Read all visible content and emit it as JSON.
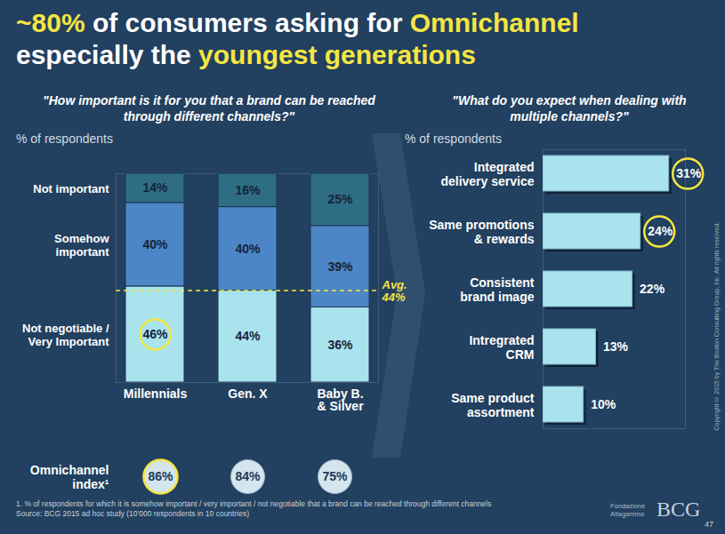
{
  "title_lines": [
    [
      {
        "text": "~80%",
        "color": "#f5e642"
      },
      {
        "text": " of consumers asking for ",
        "color": "#ffffff"
      },
      {
        "text": "Omnichannel",
        "color": "#f5e642"
      }
    ],
    [
      {
        "text": "especially the ",
        "color": "#ffffff"
      },
      {
        "text": "youngest generations",
        "color": "#f5e642"
      }
    ]
  ],
  "chart_data": [
    {
      "type": "bar",
      "stacked": true,
      "subtitle": "\"How important is it for you that a brand can be reached through different channels?\"",
      "ylabel": "% of respondents",
      "categories": [
        "Millennials",
        "Gen. X",
        "Baby B. & Silver"
      ],
      "series": [
        {
          "name": "Not negotiable / Very Important",
          "color": "#a9e3ee",
          "values": [
            46,
            44,
            36
          ],
          "value_labels": [
            "46%",
            "44%",
            "36%"
          ],
          "highlight": [
            0
          ]
        },
        {
          "name": "Somehow important",
          "color": "#4d86c6",
          "values": [
            40,
            40,
            39
          ],
          "value_labels": [
            "40%",
            "40%",
            "39%"
          ]
        },
        {
          "name": "Not important",
          "color": "#2f6d85",
          "values": [
            14,
            16,
            25
          ],
          "value_labels": [
            "14%",
            "16%",
            "25%"
          ]
        }
      ],
      "ylim": [
        0,
        100
      ],
      "yticks": [],
      "tick_labels": "x",
      "data_labels": true,
      "legend": "left",
      "annotations": [
        {
          "value": 44,
          "label": "Avg. 44%",
          "color": "#f5e642",
          "line_style": "dashed"
        }
      ],
      "omnichannel_index": {
        "label": "Omnichannel index¹",
        "values": [
          86,
          84,
          75
        ],
        "value_labels": [
          "86%",
          "84%",
          "75%"
        ],
        "highlight": [
          0
        ],
        "color": "#d4e5ee"
      }
    },
    {
      "type": "bar",
      "orientation": "horizontal",
      "subtitle": "\"What do you expect when dealing with multiple channels?\"",
      "xlabel": "% of respondents",
      "categories": [
        "Integrated delivery service",
        "Same promotions & rewards",
        "Consistent brand image",
        "Intregrated CRM",
        "Same product assortment"
      ],
      "values": [
        31,
        24,
        22,
        13,
        10
      ],
      "value_labels": [
        "31%",
        "24%",
        "22%",
        "13%",
        "10%"
      ],
      "color": "#a9e3ee",
      "highlight": [
        0,
        1
      ],
      "xlim": [
        0,
        35
      ],
      "xticks": [],
      "tick_labels": "y",
      "data_labels": true
    }
  ],
  "footnote": "1. % of respondents for which it is somehow important / very important / not negotiable that a brand can be reached through different channels",
  "source": "Source: BCG 2015 ad hoc study (10'000 respondents in 10 countries)",
  "copyright": "Copyright © 2015 by The Boston Consulting Group, Inc. All rights reserved.",
  "logos": [
    "Fondazione Altagamma",
    "BCG"
  ],
  "page_number": 47
}
